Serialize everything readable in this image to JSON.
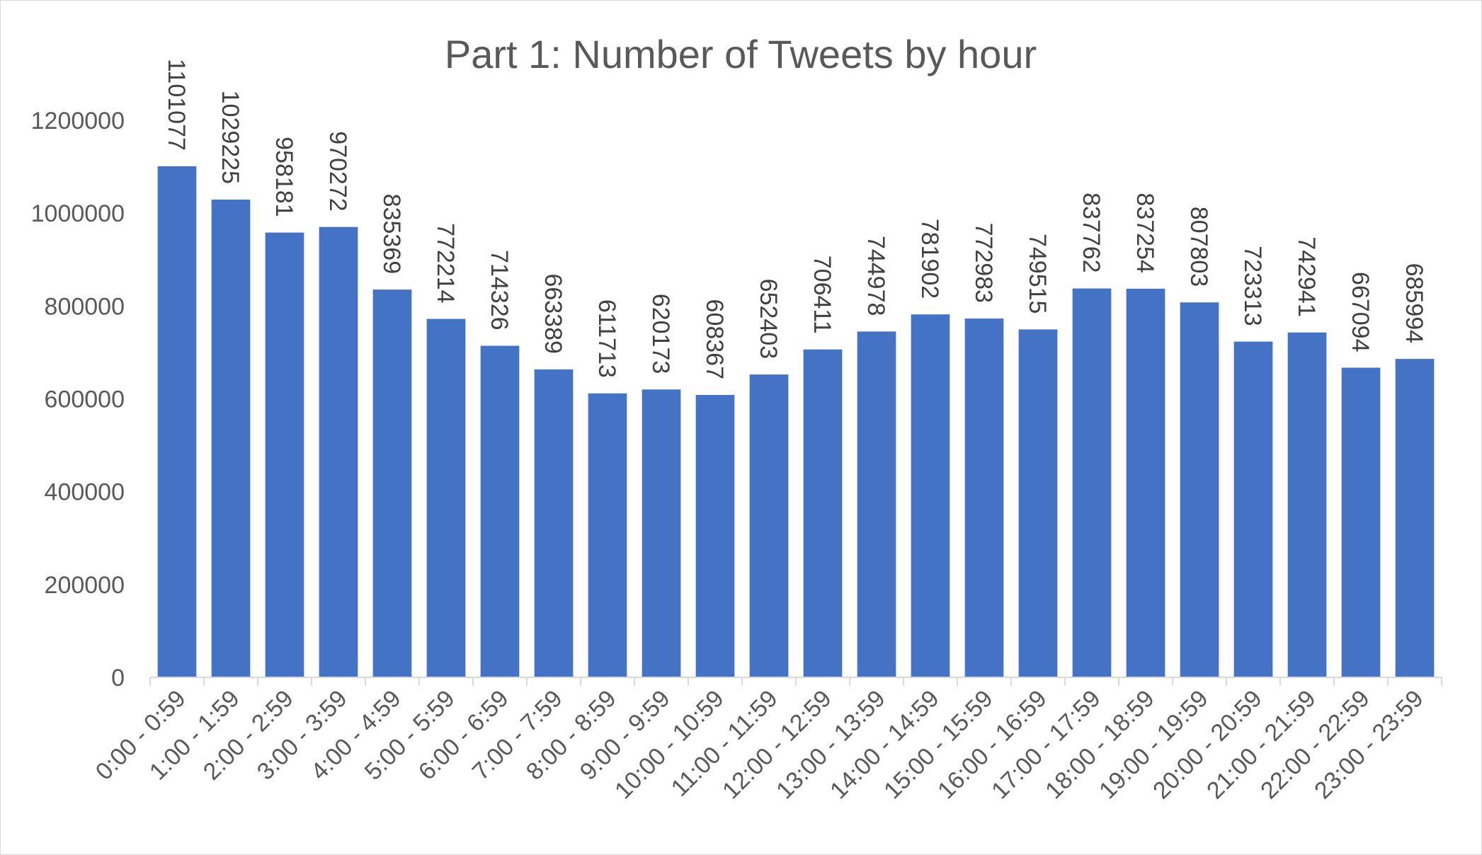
{
  "chart_data": {
    "type": "bar",
    "title": "Part 1: Number of Tweets by hour",
    "xlabel": "",
    "ylabel": "",
    "categories": [
      "0:00 - 0:59",
      "1:00 - 1:59",
      "2:00 - 2:59",
      "3:00 - 3:59",
      "4:00 - 4:59",
      "5:00 - 5:59",
      "6:00 - 6:59",
      "7:00 - 7:59",
      "8:00 - 8:59",
      "9:00 - 9:59",
      "10:00 - 10:59",
      "11:00 - 11:59",
      "12:00 - 12:59",
      "13:00 - 13:59",
      "14:00 - 14:59",
      "15:00 - 15:59",
      "16:00 - 16:59",
      "17:00 - 17:59",
      "18:00 - 18:59",
      "19:00 - 19:59",
      "20:00 - 20:59",
      "21:00 - 21:59",
      "22:00 - 22:59",
      "23:00 - 23:59"
    ],
    "values": [
      1101077,
      1029225,
      958181,
      970272,
      835369,
      772214,
      714326,
      663389,
      611713,
      620173,
      608367,
      652403,
      706411,
      744978,
      781902,
      772983,
      749515,
      837762,
      837254,
      807803,
      723313,
      742941,
      667094,
      685994
    ],
    "ylim": [
      0,
      1200000
    ],
    "y_ticks": [
      {
        "value": 0,
        "label": "0"
      },
      {
        "value": 200000,
        "label": "200000"
      },
      {
        "value": 400000,
        "label": "400000"
      },
      {
        "value": 600000,
        "label": "600000"
      },
      {
        "value": 800000,
        "label": "800000"
      },
      {
        "value": 1000000,
        "label": "1000000"
      },
      {
        "value": 1200000,
        "label": "1200000"
      }
    ],
    "grid": false,
    "legend": "none",
    "data_labels": "rotated",
    "colors": {
      "bar": "#4472c4",
      "axis": "#d9d9d9",
      "text": "#595959"
    }
  }
}
